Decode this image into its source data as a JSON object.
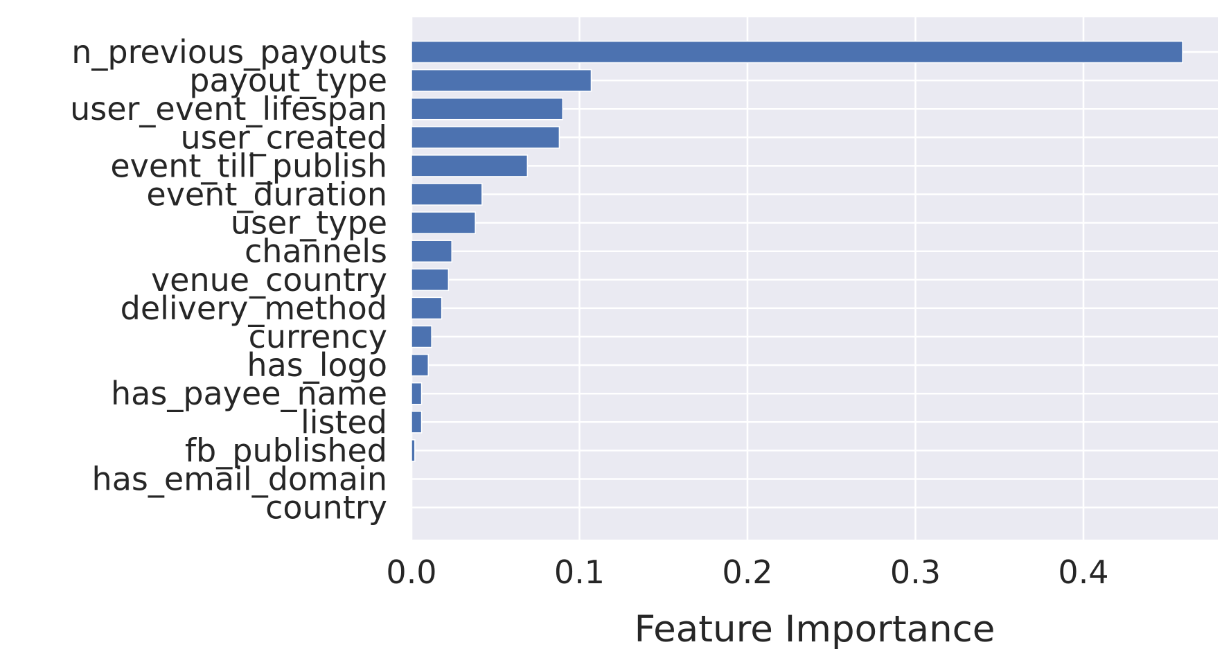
{
  "chart_data": {
    "type": "bar",
    "orientation": "horizontal",
    "categories": [
      "n_previous_payouts",
      "payout_type",
      "user_event_lifespan",
      "user_created",
      "event_till_publish",
      "event_duration",
      "user_type",
      "channels",
      "venue_country",
      "delivery_method",
      "currency",
      "has_logo",
      "has_payee_name",
      "listed",
      "fb_published",
      "has_email_domain",
      "country"
    ],
    "values": [
      0.459,
      0.107,
      0.09,
      0.088,
      0.069,
      0.042,
      0.038,
      0.024,
      0.022,
      0.018,
      0.012,
      0.01,
      0.006,
      0.006,
      0.002,
      0.0,
      0.0
    ],
    "xlabel": "Feature Importance",
    "ylabel": "",
    "title": "",
    "xlim": [
      0.0,
      0.48
    ],
    "xticks": [
      {
        "value": 0.0,
        "label": "0.0"
      },
      {
        "value": 0.1,
        "label": "0.1"
      },
      {
        "value": 0.2,
        "label": "0.2"
      },
      {
        "value": 0.3,
        "label": "0.3"
      },
      {
        "value": 0.4,
        "label": "0.4"
      }
    ],
    "grid": true,
    "colors": {
      "bar": "#4c72b0",
      "plot_background": "#eaeaf2",
      "grid": "#ffffff",
      "text": "#262626"
    }
  }
}
